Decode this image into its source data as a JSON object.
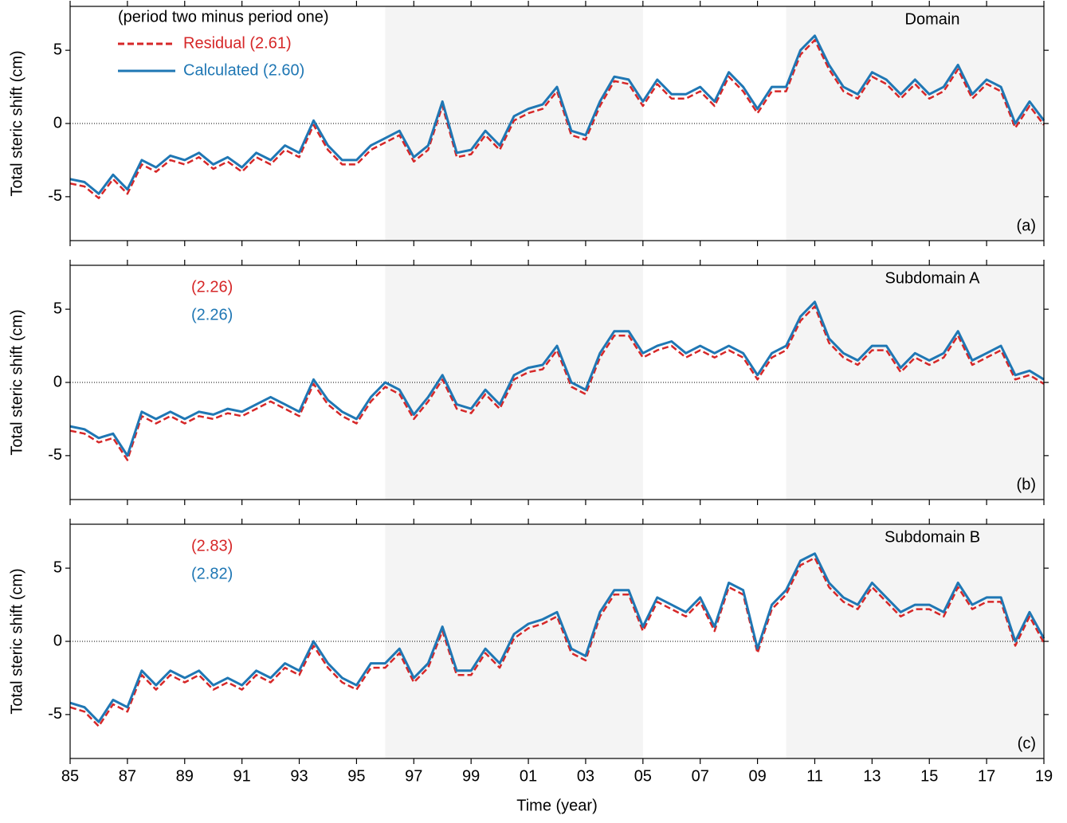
{
  "chart_data": [
    {
      "type": "line",
      "title": "Domain",
      "panel_label": "(a)",
      "ylabel": "Total steric shift (cm)",
      "legend_title": "(period two minus period one)",
      "legend_lines": true,
      "xlim": [
        1985,
        2019
      ],
      "ylim": [
        -8,
        8
      ],
      "yticks": [
        -5,
        0,
        5
      ],
      "xticks": [
        1985,
        1987,
        1989,
        1991,
        1993,
        1995,
        1997,
        1999,
        2001,
        2003,
        2005,
        2007,
        2009,
        2011,
        2013,
        2015,
        2017,
        2019
      ],
      "shaded": [
        [
          1996,
          2005
        ],
        [
          2010,
          2019
        ]
      ],
      "x": [
        1985,
        1985.5,
        1986,
        1986.5,
        1987,
        1987.5,
        1988,
        1988.5,
        1989,
        1989.5,
        1990,
        1990.5,
        1991,
        1991.5,
        1992,
        1992.5,
        1993,
        1993.5,
        1994,
        1994.5,
        1995,
        1995.5,
        1996,
        1996.5,
        1997,
        1997.5,
        1998,
        1998.5,
        1999,
        1999.5,
        2000,
        2000.5,
        2001,
        2001.5,
        2002,
        2002.5,
        2003,
        2003.5,
        2004,
        2004.5,
        2005,
        2005.5,
        2006,
        2006.5,
        2007,
        2007.5,
        2008,
        2008.5,
        2009,
        2009.5,
        2010,
        2010.5,
        2011,
        2011.5,
        2012,
        2012.5,
        2013,
        2013.5,
        2014,
        2014.5,
        2015,
        2015.5,
        2016,
        2016.5,
        2017,
        2017.5,
        2018,
        2018.5,
        2019
      ],
      "series": [
        {
          "name": "Residual (2.61)",
          "color": "#d62728",
          "line_style": "dashed",
          "values": [
            -4.1,
            -4.3,
            -5.1,
            -3.8,
            -4.8,
            -2.8,
            -3.3,
            -2.5,
            -2.8,
            -2.3,
            -3.1,
            -2.6,
            -3.3,
            -2.3,
            -2.8,
            -1.8,
            -2.3,
            -0.1,
            -1.8,
            -2.8,
            -2.8,
            -1.8,
            -1.3,
            -0.8,
            -2.6,
            -1.8,
            1.2,
            -2.3,
            -2.1,
            -0.8,
            -1.8,
            0.2,
            0.7,
            1.0,
            2.2,
            -0.8,
            -1.1,
            1.2,
            2.9,
            2.7,
            1.2,
            2.7,
            1.7,
            1.7,
            2.2,
            1.2,
            3.2,
            2.2,
            0.7,
            2.2,
            2.2,
            4.7,
            5.7,
            3.7,
            2.2,
            1.7,
            3.2,
            2.7,
            1.7,
            2.7,
            1.7,
            2.2,
            3.7,
            1.7,
            2.7,
            2.2,
            -0.3,
            1.2,
            -0.1
          ]
        },
        {
          "name": "Calculated (2.60)",
          "color": "#1f77b4",
          "line_style": "solid",
          "values": [
            -3.8,
            -4.0,
            -4.8,
            -3.5,
            -4.5,
            -2.5,
            -3.0,
            -2.2,
            -2.5,
            -2.0,
            -2.8,
            -2.3,
            -3.0,
            -2.0,
            -2.5,
            -1.5,
            -2.0,
            0.2,
            -1.5,
            -2.5,
            -2.5,
            -1.5,
            -1.0,
            -0.5,
            -2.3,
            -1.5,
            1.5,
            -2.0,
            -1.8,
            -0.5,
            -1.5,
            0.5,
            1.0,
            1.3,
            2.5,
            -0.5,
            -0.8,
            1.5,
            3.2,
            3.0,
            1.5,
            3.0,
            2.0,
            2.0,
            2.5,
            1.5,
            3.5,
            2.5,
            1.0,
            2.5,
            2.5,
            5.0,
            6.0,
            4.0,
            2.5,
            2.0,
            3.5,
            3.0,
            2.0,
            3.0,
            2.0,
            2.5,
            4.0,
            2.0,
            3.0,
            2.5,
            0.0,
            1.5,
            0.2
          ]
        }
      ]
    },
    {
      "type": "line",
      "title": "Subdomain A",
      "panel_label": "(b)",
      "ylabel": "Total steric shift (cm)",
      "legend_lines": false,
      "xlim": [
        1985,
        2019
      ],
      "ylim": [
        -8,
        8
      ],
      "yticks": [
        -5,
        0,
        5
      ],
      "xticks": [
        1985,
        1987,
        1989,
        1991,
        1993,
        1995,
        1997,
        1999,
        2001,
        2003,
        2005,
        2007,
        2009,
        2011,
        2013,
        2015,
        2017,
        2019
      ],
      "shaded": [
        [
          1996,
          2005
        ],
        [
          2010,
          2019
        ]
      ],
      "x": [
        1985,
        1985.5,
        1986,
        1986.5,
        1987,
        1987.5,
        1988,
        1988.5,
        1989,
        1989.5,
        1990,
        1990.5,
        1991,
        1991.5,
        1992,
        1992.5,
        1993,
        1993.5,
        1994,
        1994.5,
        1995,
        1995.5,
        1996,
        1996.5,
        1997,
        1997.5,
        1998,
        1998.5,
        1999,
        1999.5,
        2000,
        2000.5,
        2001,
        2001.5,
        2002,
        2002.5,
        2003,
        2003.5,
        2004,
        2004.5,
        2005,
        2005.5,
        2006,
        2006.5,
        2007,
        2007.5,
        2008,
        2008.5,
        2009,
        2009.5,
        2010,
        2010.5,
        2011,
        2011.5,
        2012,
        2012.5,
        2013,
        2013.5,
        2014,
        2014.5,
        2015,
        2015.5,
        2016,
        2016.5,
        2017,
        2017.5,
        2018,
        2018.5,
        2019
      ],
      "series": [
        {
          "name": "(2.26)",
          "color": "#d62728",
          "line_style": "dashed",
          "values": [
            -3.3,
            -3.5,
            -4.1,
            -3.8,
            -5.3,
            -2.3,
            -2.8,
            -2.3,
            -2.8,
            -2.3,
            -2.5,
            -2.1,
            -2.3,
            -1.8,
            -1.3,
            -1.8,
            -2.3,
            -0.1,
            -1.5,
            -2.3,
            -2.8,
            -1.3,
            -0.3,
            -0.8,
            -2.5,
            -1.3,
            0.2,
            -1.8,
            -2.1,
            -0.8,
            -1.8,
            0.2,
            0.7,
            0.9,
            2.2,
            -0.3,
            -0.8,
            1.7,
            3.2,
            3.2,
            1.7,
            2.2,
            2.5,
            1.7,
            2.2,
            1.7,
            2.2,
            1.7,
            0.2,
            1.7,
            2.2,
            4.2,
            5.2,
            2.7,
            1.7,
            1.2,
            2.2,
            2.2,
            0.7,
            1.7,
            1.2,
            1.7,
            3.2,
            1.2,
            1.7,
            2.2,
            0.2,
            0.5,
            -0.1
          ]
        },
        {
          "name": "(2.26)",
          "color": "#1f77b4",
          "line_style": "solid",
          "values": [
            -3.0,
            -3.2,
            -3.8,
            -3.5,
            -5.0,
            -2.0,
            -2.5,
            -2.0,
            -2.5,
            -2.0,
            -2.2,
            -1.8,
            -2.0,
            -1.5,
            -1.0,
            -1.5,
            -2.0,
            0.2,
            -1.2,
            -2.0,
            -2.5,
            -1.0,
            0.0,
            -0.5,
            -2.2,
            -1.0,
            0.5,
            -1.5,
            -1.8,
            -0.5,
            -1.5,
            0.5,
            1.0,
            1.2,
            2.5,
            0.0,
            -0.5,
            2.0,
            3.5,
            3.5,
            2.0,
            2.5,
            2.8,
            2.0,
            2.5,
            2.0,
            2.5,
            2.0,
            0.5,
            2.0,
            2.5,
            4.5,
            5.5,
            3.0,
            2.0,
            1.5,
            2.5,
            2.5,
            1.0,
            2.0,
            1.5,
            2.0,
            3.5,
            1.5,
            2.0,
            2.5,
            0.5,
            0.8,
            0.2
          ]
        }
      ]
    },
    {
      "type": "line",
      "title": "Subdomain B",
      "panel_label": "(c)",
      "ylabel": "Total steric shift (cm)",
      "xlabel": "Time (year)",
      "legend_lines": false,
      "xlim": [
        1985,
        2019
      ],
      "ylim": [
        -8,
        8
      ],
      "yticks": [
        -5,
        0,
        5
      ],
      "xticks": [
        {
          "value": 1985,
          "label": "85"
        },
        {
          "value": 1987,
          "label": "87"
        },
        {
          "value": 1989,
          "label": "89"
        },
        {
          "value": 1991,
          "label": "91"
        },
        {
          "value": 1993,
          "label": "93"
        },
        {
          "value": 1995,
          "label": "95"
        },
        {
          "value": 1997,
          "label": "97"
        },
        {
          "value": 1999,
          "label": "99"
        },
        {
          "value": 2001,
          "label": "01"
        },
        {
          "value": 2003,
          "label": "03"
        },
        {
          "value": 2005,
          "label": "05"
        },
        {
          "value": 2007,
          "label": "07"
        },
        {
          "value": 2009,
          "label": "09"
        },
        {
          "value": 2011,
          "label": "11"
        },
        {
          "value": 2013,
          "label": "13"
        },
        {
          "value": 2015,
          "label": "15"
        },
        {
          "value": 2017,
          "label": "17"
        },
        {
          "value": 2019,
          "label": "19"
        }
      ],
      "shaded": [
        [
          1996,
          2005
        ],
        [
          2010,
          2019
        ]
      ],
      "x": [
        1985,
        1985.5,
        1986,
        1986.5,
        1987,
        1987.5,
        1988,
        1988.5,
        1989,
        1989.5,
        1990,
        1990.5,
        1991,
        1991.5,
        1992,
        1992.5,
        1993,
        1993.5,
        1994,
        1994.5,
        1995,
        1995.5,
        1996,
        1996.5,
        1997,
        1997.5,
        1998,
        1998.5,
        1999,
        1999.5,
        2000,
        2000.5,
        2001,
        2001.5,
        2002,
        2002.5,
        2003,
        2003.5,
        2004,
        2004.5,
        2005,
        2005.5,
        2006,
        2006.5,
        2007,
        2007.5,
        2008,
        2008.5,
        2009,
        2009.5,
        2010,
        2010.5,
        2011,
        2011.5,
        2012,
        2012.5,
        2013,
        2013.5,
        2014,
        2014.5,
        2015,
        2015.5,
        2016,
        2016.5,
        2017,
        2017.5,
        2018,
        2018.5,
        2019
      ],
      "series": [
        {
          "name": "(2.83)",
          "color": "#d62728",
          "line_style": "dashed",
          "values": [
            -4.5,
            -4.8,
            -5.8,
            -4.3,
            -4.8,
            -2.3,
            -3.3,
            -2.3,
            -2.8,
            -2.3,
            -3.3,
            -2.8,
            -3.3,
            -2.3,
            -2.8,
            -1.8,
            -2.3,
            -0.3,
            -1.8,
            -2.8,
            -3.3,
            -1.8,
            -1.8,
            -0.8,
            -2.8,
            -1.8,
            0.7,
            -2.3,
            -2.3,
            -0.8,
            -1.8,
            0.2,
            0.9,
            1.2,
            1.7,
            -0.8,
            -1.3,
            1.7,
            3.2,
            3.2,
            0.7,
            2.7,
            2.2,
            1.7,
            2.7,
            0.7,
            3.7,
            3.2,
            -0.8,
            2.2,
            3.2,
            5.2,
            5.7,
            3.7,
            2.7,
            2.2,
            3.7,
            2.7,
            1.7,
            2.2,
            2.2,
            1.7,
            3.7,
            2.2,
            2.7,
            2.7,
            -0.3,
            1.7,
            -0.1
          ]
        },
        {
          "name": "(2.82)",
          "color": "#1f77b4",
          "line_style": "solid",
          "values": [
            -4.2,
            -4.5,
            -5.5,
            -4.0,
            -4.5,
            -2.0,
            -3.0,
            -2.0,
            -2.5,
            -2.0,
            -3.0,
            -2.5,
            -3.0,
            -2.0,
            -2.5,
            -1.5,
            -2.0,
            0.0,
            -1.5,
            -2.5,
            -3.0,
            -1.5,
            -1.5,
            -0.5,
            -2.5,
            -1.5,
            1.0,
            -2.0,
            -2.0,
            -0.5,
            -1.5,
            0.5,
            1.2,
            1.5,
            2.0,
            -0.5,
            -1.0,
            2.0,
            3.5,
            3.5,
            1.0,
            3.0,
            2.5,
            2.0,
            3.0,
            1.0,
            4.0,
            3.5,
            -0.5,
            2.5,
            3.5,
            5.5,
            6.0,
            4.0,
            3.0,
            2.5,
            4.0,
            3.0,
            2.0,
            2.5,
            2.5,
            2.0,
            4.0,
            2.5,
            3.0,
            3.0,
            0.0,
            2.0,
            0.2
          ]
        }
      ]
    }
  ]
}
